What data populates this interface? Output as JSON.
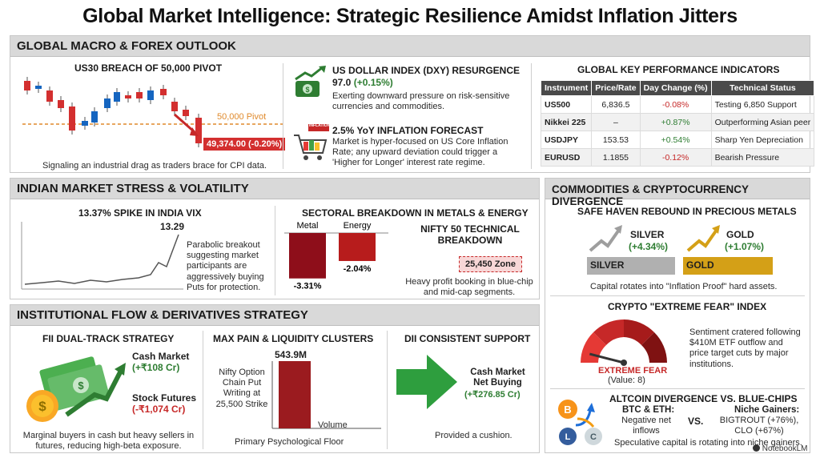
{
  "title": "Global Market Intelligence: Strategic Resilience Amidst Inflation Jitters",
  "macro": {
    "band": "GLOBAL MACRO & FOREX OUTLOOK",
    "us30": {
      "heading": "US30 BREACH OF 50,000 PIVOT",
      "pivot_label": "50,000 Pivot",
      "price_tag": "49,374.00 (-0.20%)",
      "caption": "Signaling an industrial drag as traders brace for CPI data."
    },
    "dxy": {
      "heading": "US DOLLAR INDEX (DXY) RESURGENCE",
      "value": "97.0",
      "change": "(+0.15%)",
      "text": "Exerting downward pressure on risk-sensitive currencies and commodities."
    },
    "inflation": {
      "heading": "2.5% YoY INFLATION FORECAST",
      "tag": "INFLATION",
      "text": "Market is hyper-focused on US Core Inflation Rate; any upward deviation could trigger a 'Higher for Longer' interest rate regime."
    },
    "kpi": {
      "heading": "GLOBAL KEY PERFORMANCE INDICATORS",
      "columns": [
        "Instrument",
        "Price/Rate",
        "Day Change (%)",
        "Technical Status"
      ],
      "rows": [
        [
          "US500",
          "6,836.5",
          "-0.08%",
          "Testing 6,850 Support"
        ],
        [
          "Nikkei 225",
          "–",
          "+0.87%",
          "Outperforming Asian peer"
        ],
        [
          "USDJPY",
          "153.53",
          "+0.54%",
          "Sharp Yen Depreciation"
        ],
        [
          "EURUSD",
          "1.1855",
          "-0.12%",
          "Bearish Pressure"
        ]
      ]
    }
  },
  "india": {
    "band": "INDIAN MARKET STRESS & VOLATILITY",
    "vix": {
      "heading": "13.37% SPIKE IN INDIA VIX",
      "peak_label": "13.29",
      "text": "Parabolic breakout suggesting market participants are aggressively buying Puts for protection."
    },
    "sectoral": {
      "heading": "SECTORAL BREAKDOWN IN METALS & ENERGY",
      "bars": [
        {
          "name": "Metal",
          "value": -3.31,
          "label": "-3.31%"
        },
        {
          "name": "Energy",
          "value": -2.04,
          "label": "-2.04%"
        }
      ]
    },
    "nifty": {
      "heading": "NIFTY 50 TECHNICAL BREAKDOWN",
      "zone": "25,450 Zone",
      "text": "Heavy profit booking in blue-chip and mid-cap segments."
    }
  },
  "institutional": {
    "band": "INSTITUTIONAL FLOW & DERIVATIVES STRATEGY",
    "fii": {
      "heading": "FII DUAL-TRACK STRATEGY",
      "cash_label": "Cash Market",
      "cash_value": "(+₹108 Cr)",
      "fut_label": "Stock Futures",
      "fut_value": "(-₹1,074 Cr)",
      "caption": "Marginal buyers in cash but heavy sellers in futures, reducing high-beta exposure."
    },
    "maxpain": {
      "heading": "MAX PAIN & LIQUIDITY CLUSTERS",
      "value_label": "543.9M",
      "desc": "Nifty Option Chain Put Writing at 25,500 Strike",
      "axis_label": "Volume",
      "caption": "Primary Psychological Floor"
    },
    "dii": {
      "heading": "DII CONSISTENT SUPPORT",
      "label": "Cash Market Net Buying",
      "value": "(+₹276.85 Cr)",
      "caption": "Provided a cushion."
    }
  },
  "commodities": {
    "band": "COMMODITIES & CRYPTOCURRENCY DIVERGENCE",
    "safe_haven": {
      "heading": "SAFE HAVEN REBOUND IN PRECIOUS METALS",
      "silver_name": "SILVER",
      "silver_change": "(+4.34%)",
      "silver_bar": "SILVER",
      "gold_name": "GOLD",
      "gold_change": "(+1.07%)",
      "gold_bar": "GOLD",
      "caption": "Capital rotates into \"Inflation Proof\" hard assets."
    },
    "crypto": {
      "heading": "CRYPTO \"EXTREME FEAR\" INDEX",
      "gauge_label": "EXTREME FEAR",
      "gauge_value": "(Value: 8)",
      "gauge_number": 8,
      "text": "Sentiment cratered following $410M ETF outflow and price target cuts by major institutions."
    },
    "altcoin": {
      "heading": "ALTCOIN DIVERGENCE VS. BLUE-CHIPS",
      "left_title": "BTC & ETH:",
      "left_text": "Negative net inflows",
      "vs": "VS.",
      "right_title": "Niche Gainers:",
      "right_text": "BIGTROUT (+76%), CLO (+67%)",
      "caption": "Speculative capital is rotating into niche gainers."
    }
  },
  "watermark": "NotebookLM",
  "colors": {
    "red": "#9b1b1f",
    "green": "#2e7d32",
    "gold": "#d4a017",
    "silver": "#9e9e9e",
    "band": "#d9d9d9"
  }
}
